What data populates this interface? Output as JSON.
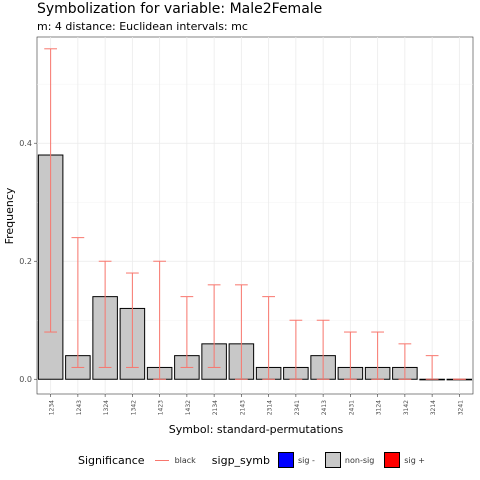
{
  "title": "Symbolization for variable: Male2Female",
  "subtitle": "m: 4  distance:  Euclidean  intervals:  mc",
  "chart_data": {
    "type": "bar",
    "xlabel": "Symbol: standard-permutations",
    "ylabel": "Frequency",
    "ylim": [
      -0.025,
      0.58
    ],
    "yticks": [
      0.0,
      0.2,
      0.4
    ],
    "ytick_labels": [
      "0.0",
      "0.2",
      "0.4"
    ],
    "grid": true,
    "categories": [
      "1234",
      "1243",
      "1324",
      "1342",
      "1423",
      "1432",
      "2134",
      "2143",
      "2314",
      "2341",
      "2413",
      "2431",
      "3124",
      "3142",
      "3214",
      "3241"
    ],
    "values": [
      0.38,
      0.04,
      0.14,
      0.12,
      0.02,
      0.04,
      0.06,
      0.06,
      0.02,
      0.02,
      0.04,
      0.02,
      0.02,
      0.02,
      0.0,
      0.0
    ],
    "error_low": [
      0.08,
      0.02,
      0.02,
      0.02,
      0.0,
      0.02,
      0.02,
      0.0,
      0.0,
      0.0,
      0.0,
      0.0,
      0.0,
      0.0,
      0.0,
      0.0
    ],
    "error_high": [
      0.56,
      0.24,
      0.2,
      0.18,
      0.2,
      0.14,
      0.16,
      0.16,
      0.14,
      0.1,
      0.1,
      0.08,
      0.08,
      0.06,
      0.04,
      0.0
    ],
    "bar_fill": "#c8c8c8",
    "error_color": "#f8766d"
  },
  "legend": {
    "significance_title": "Significance",
    "significance_item": "black",
    "sigp_title": "sigp_symb",
    "items": [
      {
        "label": "sig -",
        "color": "#0000ff"
      },
      {
        "label": "non-sig",
        "color": "#c8c8c8"
      },
      {
        "label": "sig +",
        "color": "#ff0000"
      }
    ]
  }
}
